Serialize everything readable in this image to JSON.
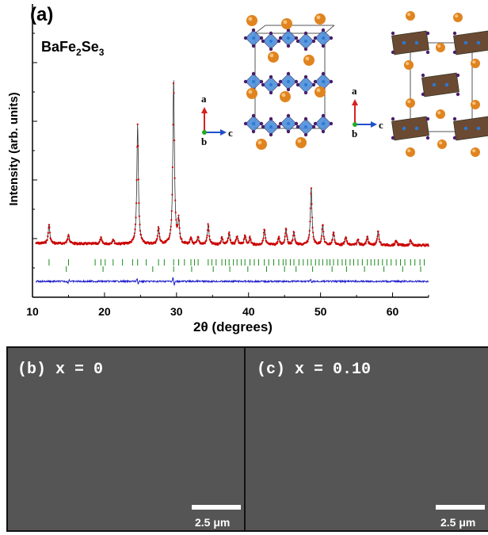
{
  "panel_a": {
    "label": "(a)",
    "compound": {
      "base": "BaFe",
      "sub1": "2",
      "mid": "Se",
      "sub2": "3"
    },
    "axis_labels": {
      "a": "a",
      "b": "b",
      "c": "c"
    }
  },
  "chart_data": {
    "type": "line",
    "title": "",
    "xlabel": "2θ (degrees)",
    "ylabel": "Intensity (arb. units)",
    "xlim": [
      10,
      65
    ],
    "xticks": [
      10,
      20,
      30,
      40,
      50,
      60
    ],
    "series": [
      {
        "name": "",
        "role": "observed",
        "color": "#cc0000"
      },
      {
        "name": "",
        "role": "calculated",
        "color": "#333333"
      },
      {
        "name": "",
        "role": "difference",
        "color": "#1f1fcc"
      }
    ],
    "peaks": [
      {
        "x": 12.3,
        "h": 0.16
      },
      {
        "x": 15.0,
        "h": 0.08
      },
      {
        "x": 19.5,
        "h": 0.05
      },
      {
        "x": 21.2,
        "h": 0.04
      },
      {
        "x": 24.6,
        "h": 1.0
      },
      {
        "x": 27.5,
        "h": 0.14
      },
      {
        "x": 29.6,
        "h": 1.38
      },
      {
        "x": 30.3,
        "h": 0.19
      },
      {
        "x": 32.0,
        "h": 0.05
      },
      {
        "x": 33.0,
        "h": 0.06
      },
      {
        "x": 34.4,
        "h": 0.17
      },
      {
        "x": 36.3,
        "h": 0.06
      },
      {
        "x": 37.3,
        "h": 0.1
      },
      {
        "x": 38.4,
        "h": 0.07
      },
      {
        "x": 39.5,
        "h": 0.08
      },
      {
        "x": 40.2,
        "h": 0.06
      },
      {
        "x": 42.2,
        "h": 0.13
      },
      {
        "x": 44.2,
        "h": 0.06
      },
      {
        "x": 45.2,
        "h": 0.14
      },
      {
        "x": 46.3,
        "h": 0.11
      },
      {
        "x": 48.7,
        "h": 0.48
      },
      {
        "x": 50.3,
        "h": 0.17
      },
      {
        "x": 51.8,
        "h": 0.11
      },
      {
        "x": 53.5,
        "h": 0.07
      },
      {
        "x": 55.2,
        "h": 0.05
      },
      {
        "x": 56.5,
        "h": 0.07
      },
      {
        "x": 58.0,
        "h": 0.12
      },
      {
        "x": 60.5,
        "h": 0.04
      },
      {
        "x": 62.5,
        "h": 0.04
      }
    ],
    "bragg_row1": [
      12.3,
      15.0,
      18.7,
      19.5,
      20.1,
      21.2,
      22.5,
      23.9,
      24.6,
      25.8,
      27.5,
      28.3,
      29.6,
      30.3,
      31.1,
      32.0,
      32.5,
      33.0,
      34.4,
      34.9,
      35.5,
      36.3,
      36.8,
      37.3,
      37.9,
      38.4,
      39.0,
      39.5,
      40.2,
      40.8,
      41.4,
      42.2,
      42.8,
      43.5,
      44.2,
      44.8,
      45.2,
      45.8,
      46.3,
      47.0,
      47.6,
      48.2,
      48.7,
      49.3,
      49.8,
      50.3,
      50.9,
      51.3,
      51.8,
      52.4,
      53.0,
      53.5,
      54.1,
      54.6,
      55.2,
      55.8,
      56.5,
      57.0,
      57.5,
      58.0,
      58.6,
      59.2,
      59.8,
      60.5,
      61.1,
      61.7,
      62.5,
      63.1,
      63.8,
      64.4
    ],
    "bragg_row2": [
      14.7,
      19.8,
      26.7,
      29.6,
      32.1,
      35.1,
      37.4,
      39.9,
      42.5,
      45.0,
      46.6,
      48.9,
      51.6,
      53.6,
      56.1,
      58.8,
      61.4,
      63.9
    ],
    "difference_features": [
      {
        "x": 24.6,
        "a": 0.6
      },
      {
        "x": 29.6,
        "a": 0.8
      },
      {
        "x": 15.0,
        "a": -0.3
      },
      {
        "x": 48.7,
        "a": 0.3
      }
    ]
  },
  "panel_b": {
    "label": "(b)  x = 0",
    "scale": "2.5 μm"
  },
  "panel_c": {
    "label": "(c)  x = 0.10",
    "scale": "2.5 μm"
  }
}
